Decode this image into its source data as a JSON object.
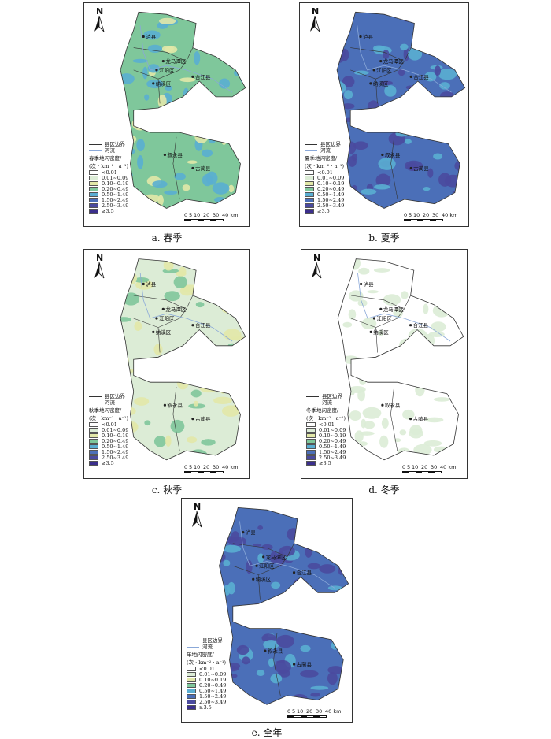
{
  "legend": {
    "boundary_label": "县区边界",
    "river_label": "河流",
    "unit": "(次 · km⁻² · a⁻¹)",
    "classes": [
      {
        "label": "<0.01",
        "color": "#ffffff"
      },
      {
        "label": "0.01~0.09",
        "color": "#dcecd6"
      },
      {
        "label": "0.10~0.19",
        "color": "#e2e8a8"
      },
      {
        "label": "0.20~0.49",
        "color": "#7fc79b"
      },
      {
        "label": "0.50~1.49",
        "color": "#5aaed2"
      },
      {
        "label": "1.50~2.49",
        "color": "#4b6fb8"
      },
      {
        "label": "2.50~3.49",
        "color": "#4a4a9e"
      },
      {
        "label": "≥3.5",
        "color": "#3b2f8c"
      }
    ]
  },
  "north_label": "N",
  "scale_labels": [
    "0",
    "5",
    "10",
    "20",
    "30",
    "40 km"
  ],
  "places": [
    "泸县",
    "龙马潭区",
    "江阳区",
    "纳溪区",
    "合江县",
    "叙永县",
    "古蔺县"
  ],
  "panels": [
    {
      "id": "a",
      "caption": "a. 春季",
      "legend_title": "春季地闪密度/",
      "dominant": "#7fc79b",
      "patch": "#5aaed2",
      "minor": "#e2e8a8"
    },
    {
      "id": "b",
      "caption": "b. 夏季",
      "legend_title": "夏季地闪密度/",
      "dominant": "#4b6fb8",
      "patch": "#4a4a9e",
      "minor": "#5aaed2"
    },
    {
      "id": "c",
      "caption": "c. 秋季",
      "legend_title": "秋季地闪密度/",
      "dominant": "#dcecd6",
      "patch": "#e2e8a8",
      "minor": "#7fc79b"
    },
    {
      "id": "d",
      "caption": "d. 冬季",
      "legend_title": "冬季地闪密度/",
      "dominant": "#ffffff",
      "patch": "#dcecd6",
      "minor": "#dcecd6"
    },
    {
      "id": "e",
      "caption": "e. 全年",
      "legend_title": "年地闪密度/",
      "dominant": "#4b6fb8",
      "patch": "#4a4a9e",
      "minor": "#5aaed2"
    }
  ]
}
